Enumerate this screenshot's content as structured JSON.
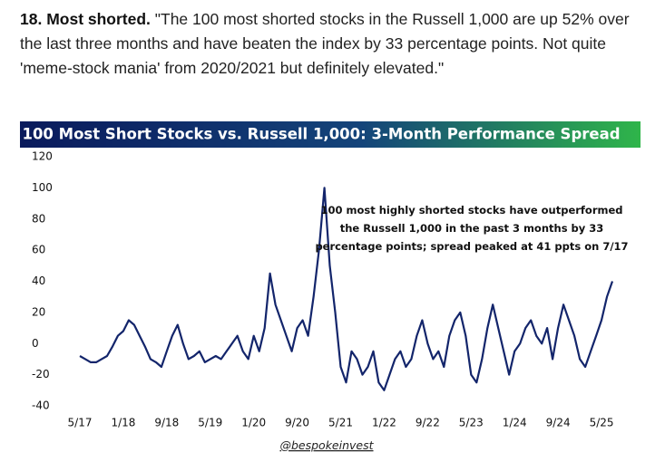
{
  "header": {
    "heading": "18. Most shorted.",
    "text": "\"The 100 most shorted stocks in the Russell 1,000 are up 52% over the last three months and have beaten the index by 33 percentage points. Not quite 'meme-stock mania' from 2020/2021 but definitely elevated.\""
  },
  "chart_data": {
    "type": "line",
    "title": "100 Most Short Stocks vs. Russell 1,000: 3-Month Performance Spread",
    "annotation": [
      "100 most highly shorted stocks have outperformed",
      "the Russell 1,000 in the past 3 months by 33",
      "percentage points; spread peaked at 41 ppts on 7/17"
    ],
    "source": "@bespokeinvest",
    "color": "#13256b",
    "x": [
      "5/17",
      "6/17",
      "7/17",
      "8/17",
      "9/17",
      "10/17",
      "11/17",
      "12/17",
      "1/18",
      "2/18",
      "3/18",
      "4/18",
      "5/18",
      "6/18",
      "7/18",
      "8/18",
      "9/18",
      "10/18",
      "11/18",
      "12/18",
      "1/19",
      "2/19",
      "3/19",
      "4/19",
      "5/19",
      "6/19",
      "7/19",
      "8/19",
      "9/19",
      "10/19",
      "11/19",
      "12/19",
      "1/20",
      "2/20",
      "3/20",
      "4/20",
      "5/20",
      "6/20",
      "7/20",
      "8/20",
      "9/20",
      "10/20",
      "11/20",
      "12/20",
      "1/21",
      "2/21",
      "3/21",
      "4/21",
      "5/21",
      "6/21",
      "7/21",
      "8/21",
      "9/21",
      "10/21",
      "11/21",
      "12/21",
      "1/22",
      "2/22",
      "3/22",
      "4/22",
      "5/22",
      "6/22",
      "7/22",
      "8/22",
      "9/22",
      "10/22",
      "11/22",
      "12/22",
      "1/23",
      "2/23",
      "3/23",
      "4/23",
      "5/23",
      "6/23",
      "7/23",
      "8/23",
      "9/23",
      "10/23",
      "11/23",
      "12/23",
      "1/24",
      "2/24",
      "3/24",
      "4/24",
      "5/24",
      "6/24",
      "7/24",
      "8/24",
      "9/24",
      "10/24",
      "11/24",
      "12/24",
      "1/25",
      "2/25",
      "3/25",
      "4/25",
      "5/25",
      "6/25",
      "7/25"
    ],
    "values": [
      -8,
      -10,
      -12,
      -12,
      -10,
      -8,
      -2,
      5,
      8,
      15,
      12,
      5,
      -2,
      -10,
      -12,
      -15,
      -5,
      5,
      12,
      0,
      -10,
      -8,
      -5,
      -12,
      -10,
      -8,
      -10,
      -5,
      0,
      5,
      -5,
      -10,
      5,
      -5,
      10,
      45,
      25,
      15,
      5,
      -5,
      10,
      15,
      5,
      30,
      60,
      100,
      50,
      20,
      -15,
      -25,
      -5,
      -10,
      -20,
      -15,
      -5,
      -25,
      -30,
      -20,
      -10,
      -5,
      -15,
      -10,
      5,
      15,
      0,
      -10,
      -5,
      -15,
      5,
      15,
      20,
      5,
      -20,
      -25,
      -10,
      10,
      25,
      10,
      -5,
      -20,
      -5,
      0,
      10,
      15,
      5,
      0,
      10,
      -10,
      10,
      25,
      15,
      5,
      -10,
      -15,
      -5,
      5,
      15,
      30,
      40
    ],
    "xticks": [
      "5/17",
      "1/18",
      "9/18",
      "5/19",
      "1/20",
      "9/20",
      "5/21",
      "1/22",
      "9/22",
      "5/23",
      "1/24",
      "9/24",
      "5/25"
    ],
    "ylim": [
      -40,
      120
    ],
    "yticks": [
      -40,
      -20,
      0,
      20,
      40,
      60,
      80,
      100,
      120
    ],
    "grid": false
  }
}
